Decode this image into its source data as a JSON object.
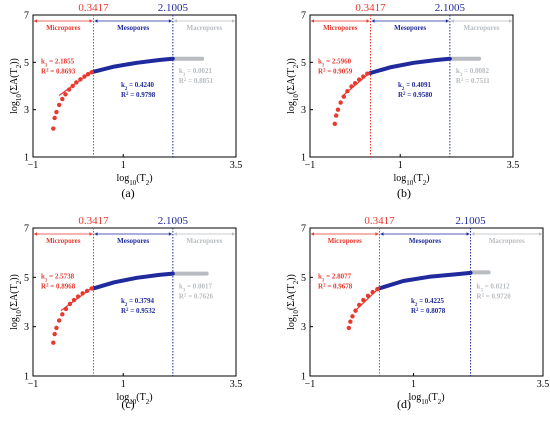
{
  "colors": {
    "micro": "#e8392f",
    "meso": "#1f2a9c",
    "macro": "#b8bcc0",
    "axis": "#000000"
  },
  "chart_data": [
    {
      "type": "scatter",
      "caption": "(a)",
      "xlabel": "log10(T2)",
      "ylabel": "log10(ΣA(T2))",
      "xlim": [
        -1,
        3.5
      ],
      "ylim": [
        1,
        7
      ],
      "xticks": [
        "−1",
        "1",
        "3.5"
      ],
      "yticks": [
        "1",
        "3",
        "5",
        "7"
      ],
      "thresholds": [
        {
          "value": 0.3417,
          "label": "0.3417"
        },
        {
          "value": 2.1005,
          "label": "2.1005"
        }
      ],
      "zones": [
        "Micropores",
        "Mesopores",
        "Macropores"
      ],
      "fits": [
        {
          "k_label": "k1 = 2.1855",
          "r2_label": "R2 = 0.8693"
        },
        {
          "k_label": "k2 = 0.4240",
          "r2_label": "R2 = 0.9798"
        },
        {
          "k_label": "k3 = 0.0021",
          "r2_label": "R2 = 0.8851"
        }
      ],
      "micro_points": [
        [
          -0.55,
          2.2
        ],
        [
          -0.52,
          2.65
        ],
        [
          -0.48,
          2.9
        ],
        [
          -0.42,
          3.2
        ],
        [
          -0.35,
          3.45
        ],
        [
          -0.28,
          3.65
        ],
        [
          -0.2,
          3.85
        ],
        [
          -0.12,
          4.0
        ],
        [
          -0.04,
          4.15
        ],
        [
          0.05,
          4.28
        ],
        [
          0.14,
          4.4
        ],
        [
          0.22,
          4.5
        ],
        [
          0.3,
          4.58
        ]
      ],
      "micro_fit": [
        [
          -0.42,
          3.6
        ],
        [
          0.34,
          4.65
        ]
      ],
      "meso_curve": [
        [
          0.34,
          4.6
        ],
        [
          0.8,
          4.82
        ],
        [
          1.3,
          4.98
        ],
        [
          1.8,
          5.1
        ],
        [
          2.1,
          5.15
        ]
      ],
      "macro_line": [
        [
          2.1,
          5.15
        ],
        [
          2.75,
          5.15
        ]
      ]
    },
    {
      "type": "scatter",
      "caption": "(b)",
      "xlabel": "log10(T2)",
      "ylabel": "log10(ΣA(T2))",
      "xlim": [
        -1,
        3.5
      ],
      "ylim": [
        1,
        7
      ],
      "xticks": [
        "−1",
        "1",
        "3.5"
      ],
      "yticks": [
        "1",
        "3",
        "5",
        "7"
      ],
      "thresholds": [
        {
          "value": 0.3417,
          "label": "0.3417"
        },
        {
          "value": 2.1005,
          "label": "2.1005"
        }
      ],
      "zones": [
        "Micropores",
        "Mesopores",
        "Macropores"
      ],
      "fits": [
        {
          "k_label": "k1 = 2.5960",
          "r2_label": "R2 = 0.9059"
        },
        {
          "k_label": "k2 = 0.4091",
          "r2_label": "R2 = 0.9580"
        },
        {
          "k_label": "k3 = 0.0082",
          "r2_label": "R2 = 0.7511"
        }
      ],
      "micro_points": [
        [
          -0.45,
          2.4
        ],
        [
          -0.42,
          2.75
        ],
        [
          -0.38,
          3.0
        ],
        [
          -0.32,
          3.3
        ],
        [
          -0.25,
          3.55
        ],
        [
          -0.17,
          3.78
        ],
        [
          -0.08,
          3.98
        ],
        [
          0.0,
          4.12
        ],
        [
          0.09,
          4.27
        ],
        [
          0.18,
          4.4
        ],
        [
          0.27,
          4.52
        ]
      ],
      "micro_fit": [
        [
          -0.3,
          3.55
        ],
        [
          0.34,
          4.58
        ]
      ],
      "meso_curve": [
        [
          0.34,
          4.55
        ],
        [
          0.8,
          4.8
        ],
        [
          1.3,
          4.98
        ],
        [
          1.8,
          5.1
        ],
        [
          2.1,
          5.15
        ]
      ],
      "macro_line": [
        [
          2.1,
          5.15
        ],
        [
          2.75,
          5.15
        ]
      ]
    },
    {
      "type": "scatter",
      "caption": "(c)",
      "xlabel": "log10(T2)",
      "ylabel": "log10(ΣA(T2))",
      "xlim": [
        -1,
        3.5
      ],
      "ylim": [
        1,
        7
      ],
      "xticks": [
        "−1",
        "1",
        "3.5"
      ],
      "yticks": [
        "1",
        "3",
        "5",
        "7"
      ],
      "thresholds": [
        {
          "value": 0.3417,
          "label": "0.3417"
        },
        {
          "value": 2.1005,
          "label": "2.1005"
        }
      ],
      "zones": [
        "Micropores",
        "Mesopores",
        "Macropores"
      ],
      "fits": [
        {
          "k_label": "k1 = 2.5738",
          "r2_label": "R2 = 0.8968"
        },
        {
          "k_label": "k2 = 0.3794",
          "r2_label": "R2 = 0.9532"
        },
        {
          "k_label": "k3 = 0.0017",
          "r2_label": "R2 = 0.7626"
        }
      ],
      "micro_points": [
        [
          -0.55,
          2.35
        ],
        [
          -0.52,
          2.7
        ],
        [
          -0.48,
          2.95
        ],
        [
          -0.42,
          3.25
        ],
        [
          -0.35,
          3.5
        ],
        [
          -0.27,
          3.72
        ],
        [
          -0.18,
          3.92
        ],
        [
          -0.09,
          4.08
        ],
        [
          0.0,
          4.22
        ],
        [
          0.1,
          4.35
        ],
        [
          0.2,
          4.45
        ],
        [
          0.3,
          4.55
        ]
      ],
      "micro_fit": [
        [
          -0.38,
          3.65
        ],
        [
          0.34,
          4.62
        ]
      ],
      "meso_curve": [
        [
          0.34,
          4.55
        ],
        [
          0.8,
          4.8
        ],
        [
          1.3,
          4.98
        ],
        [
          1.8,
          5.1
        ],
        [
          2.1,
          5.15
        ]
      ],
      "macro_line": [
        [
          2.1,
          5.15
        ],
        [
          2.85,
          5.15
        ]
      ]
    },
    {
      "type": "scatter",
      "caption": "(d)",
      "xlabel": "log10(T2)",
      "ylabel": "log10(ΣA(T2))",
      "xlim": [
        -1,
        3.5
      ],
      "ylim": [
        1,
        7
      ],
      "xticks": [
        "−1",
        "1",
        "3.5"
      ],
      "yticks": [
        "1",
        "3",
        "5",
        "7"
      ],
      "thresholds": [
        {
          "value": 0.3417,
          "label": "0.3417"
        },
        {
          "value": 2.1005,
          "label": "2.1005"
        }
      ],
      "zones": [
        "Micropores",
        "Mesopores",
        "Macropores"
      ],
      "fits": [
        {
          "k_label": "k1 = 2.8077",
          "r2_label": "R2 = 0.9678"
        },
        {
          "k_label": "k2 = 0.4225",
          "r2_label": "R2 = 0.8078"
        },
        {
          "k_label": "k3 = 0.0212",
          "r2_label": "R2 = 0.9720"
        }
      ],
      "micro_points": [
        [
          -0.25,
          2.95
        ],
        [
          -0.22,
          3.2
        ],
        [
          -0.18,
          3.42
        ],
        [
          -0.12,
          3.65
        ],
        [
          -0.05,
          3.88
        ],
        [
          0.03,
          4.08
        ],
        [
          0.12,
          4.25
        ],
        [
          0.21,
          4.4
        ],
        [
          0.3,
          4.52
        ]
      ],
      "micro_fit": [
        [
          -0.1,
          3.7
        ],
        [
          0.36,
          4.62
        ]
      ],
      "meso_curve": [
        [
          0.34,
          4.55
        ],
        [
          0.8,
          4.85
        ],
        [
          1.3,
          5.02
        ],
        [
          1.8,
          5.12
        ],
        [
          2.1,
          5.18
        ]
      ],
      "macro_line": [
        [
          2.1,
          5.2
        ],
        [
          2.45,
          5.2
        ]
      ]
    }
  ]
}
